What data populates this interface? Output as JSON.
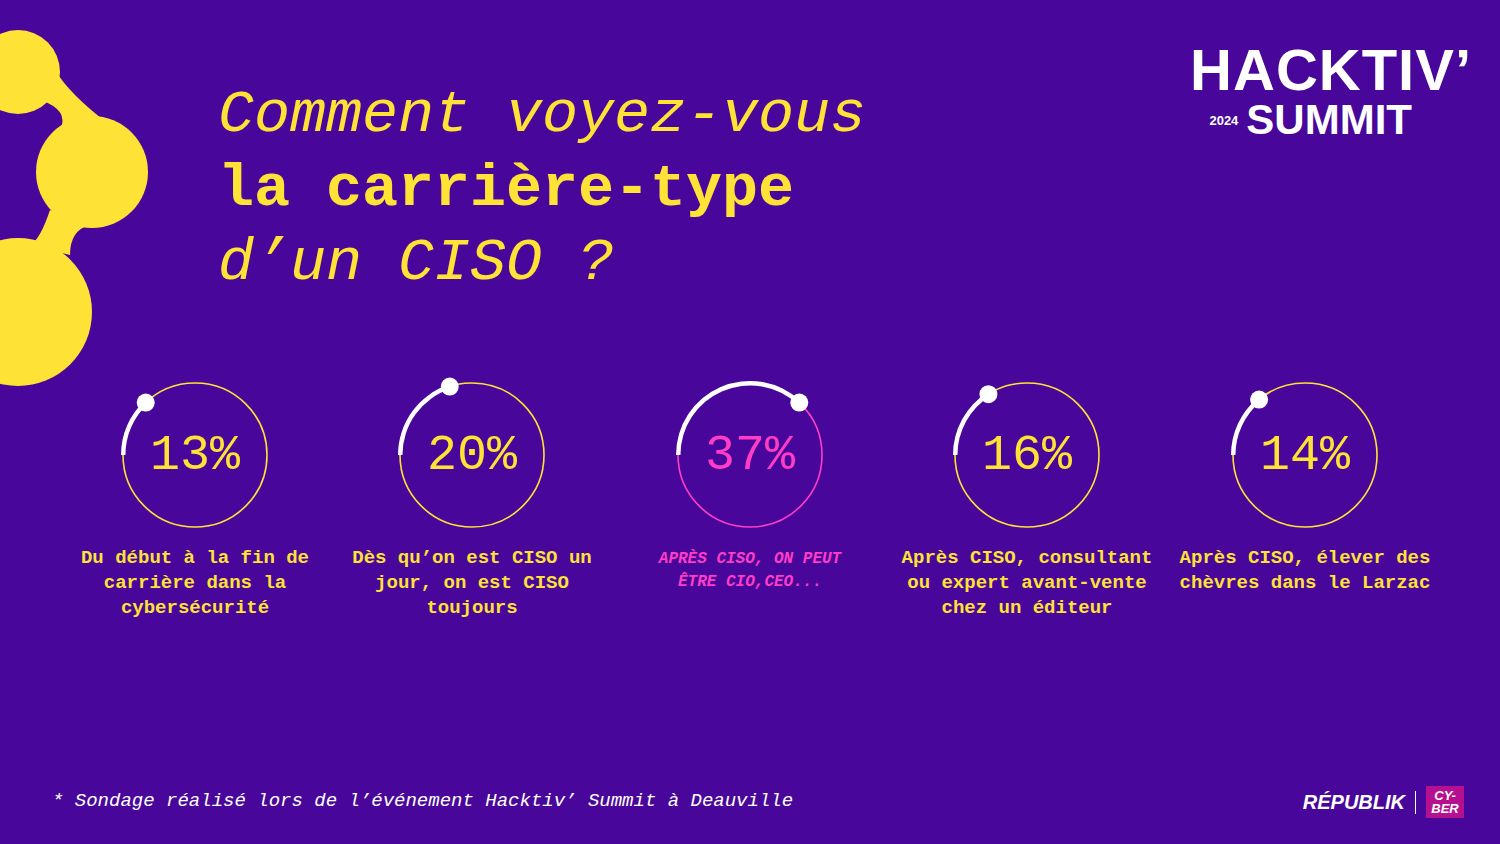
{
  "chart_data": {
    "type": "gauge",
    "title_lines": [
      "Comment voyez-vous",
      "la carrière-type",
      "d’un CISO ?"
    ],
    "categories": [
      "Du début à la fin de carrière dans la cybersécurité",
      "Dès qu’on est CISO un jour, on est CISO toujours",
      "APRÈS CISO, ON PEUT ÊTRE CIO,CEO...",
      "Après CISO, consultant ou expert avant-vente chez un éditeur",
      "Après CISO, élever des chèvres dans le Larzac"
    ],
    "values": [
      13,
      20,
      37,
      16,
      14
    ],
    "value_labels": [
      "13%",
      "20%",
      "37%",
      "16%",
      "14%"
    ],
    "colors": [
      "#ffe236",
      "#ffe236",
      "#ff3cc7",
      "#ffe236",
      "#ffe236"
    ],
    "data_labels": true
  },
  "logo": {
    "name": "HACKTIV’",
    "year": "2024",
    "event": "SUMMIT"
  },
  "footnote": "* Sondage réalisé lors de l’événement Hacktiv’ Summit à Deauville",
  "brands": [
    "RÉPUBLIK",
    "CY-BER"
  ]
}
